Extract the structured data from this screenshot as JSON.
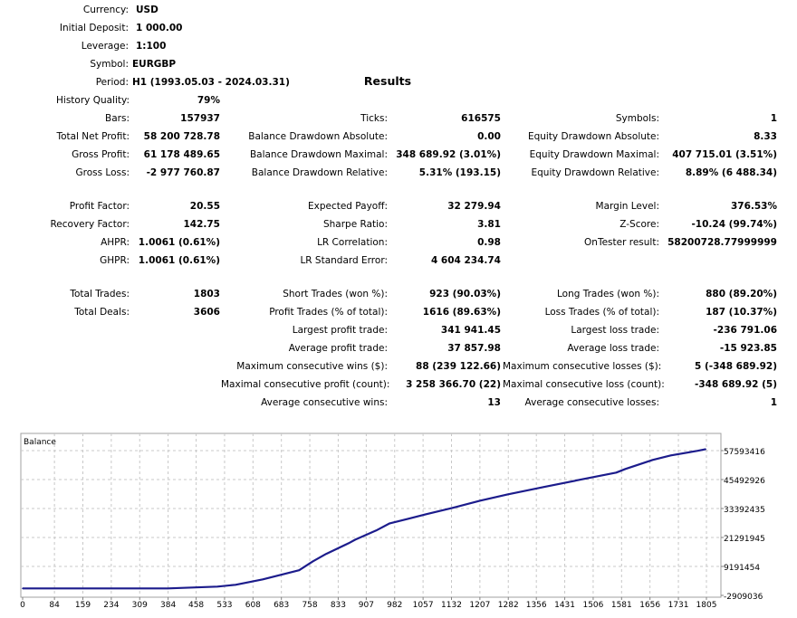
{
  "settings": [
    {
      "label": "Currency:",
      "value": "USD"
    },
    {
      "label": "Initial Deposit:",
      "value": "1 000.00"
    },
    {
      "label": "Leverage:",
      "value": "1:100"
    },
    {
      "label": "Symbol:",
      "value": "EURGBP"
    },
    {
      "label": "Period:",
      "value": "H1 (1993.05.03 - 2024.03.31)"
    }
  ],
  "results_title": "Results",
  "results": [
    {
      "c1": {
        "label": "History Quality:",
        "value": "79%"
      }
    },
    {
      "c1": {
        "label": "Bars:",
        "value": "157937"
      },
      "c2": {
        "label": "Ticks:",
        "value": "616575"
      },
      "c3": {
        "label": "Symbols:",
        "value": "1"
      }
    },
    {
      "c1": {
        "label": "Total Net Profit:",
        "value": "58 200 728.78"
      },
      "c2": {
        "label": "Balance Drawdown Absolute:",
        "value": "0.00"
      },
      "c3": {
        "label": "Equity Drawdown Absolute:",
        "value": "8.33"
      }
    },
    {
      "c1": {
        "label": "Gross Profit:",
        "value": "61 178 489.65"
      },
      "c2": {
        "label": "Balance Drawdown Maximal:",
        "value": "348 689.92 (3.01%)"
      },
      "c3": {
        "label": "Equity Drawdown Maximal:",
        "value": "407 715.01 (3.51%)"
      }
    },
    {
      "c1": {
        "label": "Gross Loss:",
        "value": "-2 977 760.87"
      },
      "c2": {
        "label": "Balance Drawdown Relative:",
        "value": "5.31% (193.15)"
      },
      "c3": {
        "label": "Equity Drawdown Relative:",
        "value": "8.89% (6 488.34)"
      }
    },
    {
      "c1": {
        "label": "Profit Factor:",
        "value": "20.55"
      },
      "c2": {
        "label": "Expected Payoff:",
        "value": "32 279.94"
      },
      "c3": {
        "label": "Margin Level:",
        "value": "376.53%"
      }
    },
    {
      "c1": {
        "label": "Recovery Factor:",
        "value": "142.75"
      },
      "c2": {
        "label": "Sharpe Ratio:",
        "value": "3.81"
      },
      "c3": {
        "label": "Z-Score:",
        "value": "-10.24 (99.74%)"
      }
    },
    {
      "c1": {
        "label": "AHPR:",
        "value": "1.0061 (0.61%)"
      },
      "c2": {
        "label": "LR Correlation:",
        "value": "0.98"
      },
      "c3": {
        "label": "OnTester result:",
        "value": "58200728.77999999"
      }
    },
    {
      "c1": {
        "label": "GHPR:",
        "value": "1.0061 (0.61%)"
      },
      "c2": {
        "label": "LR Standard Error:",
        "value": "4 604 234.74"
      }
    },
    {
      "c1": {
        "label": "Total Trades:",
        "value": "1803"
      },
      "c2": {
        "label": "Short Trades (won %):",
        "value": "923 (90.03%)"
      },
      "c3": {
        "label": "Long Trades (won %):",
        "value": "880 (89.20%)"
      }
    },
    {
      "c1": {
        "label": "Total Deals:",
        "value": "3606"
      },
      "c2": {
        "label": "Profit Trades (% of total):",
        "value": "1616 (89.63%)"
      },
      "c3": {
        "label": "Loss Trades (% of total):",
        "value": "187 (10.37%)"
      }
    },
    {
      "c2": {
        "label": "Largest profit trade:",
        "value": "341 941.45"
      },
      "c3": {
        "label": "Largest loss trade:",
        "value": "-236 791.06"
      }
    },
    {
      "c2": {
        "label": "Average profit trade:",
        "value": "37 857.98"
      },
      "c3": {
        "label": "Average loss trade:",
        "value": "-15 923.85"
      }
    },
    {
      "c2": {
        "label": "Maximum consecutive wins ($):",
        "value": "88 (239 122.66)"
      },
      "c3": {
        "label": "Maximum consecutive losses ($):",
        "value": "5 (-348 689.92)"
      }
    },
    {
      "c2": {
        "label": "Maximal consecutive profit (count):",
        "value": "3 258 366.70 (22)"
      },
      "c3": {
        "label": "Maximal consecutive loss (count):",
        "value": "-348 689.92 (5)"
      }
    },
    {
      "c2": {
        "label": "Average consecutive wins:",
        "value": "13"
      },
      "c3": {
        "label": "Average consecutive losses:",
        "value": "1"
      }
    }
  ],
  "chart_data": {
    "type": "line",
    "title": "Balance",
    "line_color": "#1c1c8c",
    "grid": true,
    "x_ticks": [
      0,
      84,
      159,
      234,
      309,
      384,
      458,
      533,
      608,
      683,
      758,
      833,
      907,
      982,
      1057,
      1132,
      1207,
      1282,
      1356,
      1431,
      1506,
      1581,
      1656,
      1731,
      1805
    ],
    "y_ticks": [
      57593416,
      45492926,
      33392435,
      21291945,
      9191454,
      -2909036
    ],
    "xlim": [
      0,
      1848
    ],
    "ylim": [
      -2909036,
      60200000
    ],
    "series": [
      {
        "x": [
          0,
          383,
          514,
          562,
          634,
          730,
          766,
          801,
          861,
          878,
          933,
          969,
          1017,
          1065,
          1136,
          1208,
          1280,
          1376,
          1471,
          1567,
          1591,
          1663,
          1711,
          1782,
          1803
        ],
        "y": [
          1000,
          1000,
          760000,
          1500000,
          3800000,
          7600000,
          11300000,
          14400000,
          18900000,
          20400000,
          24200000,
          27200000,
          29100000,
          31000000,
          33700000,
          36700000,
          39300000,
          42400000,
          45400000,
          48400000,
          49900000,
          53700000,
          55600000,
          57500000,
          58201729
        ]
      }
    ]
  }
}
